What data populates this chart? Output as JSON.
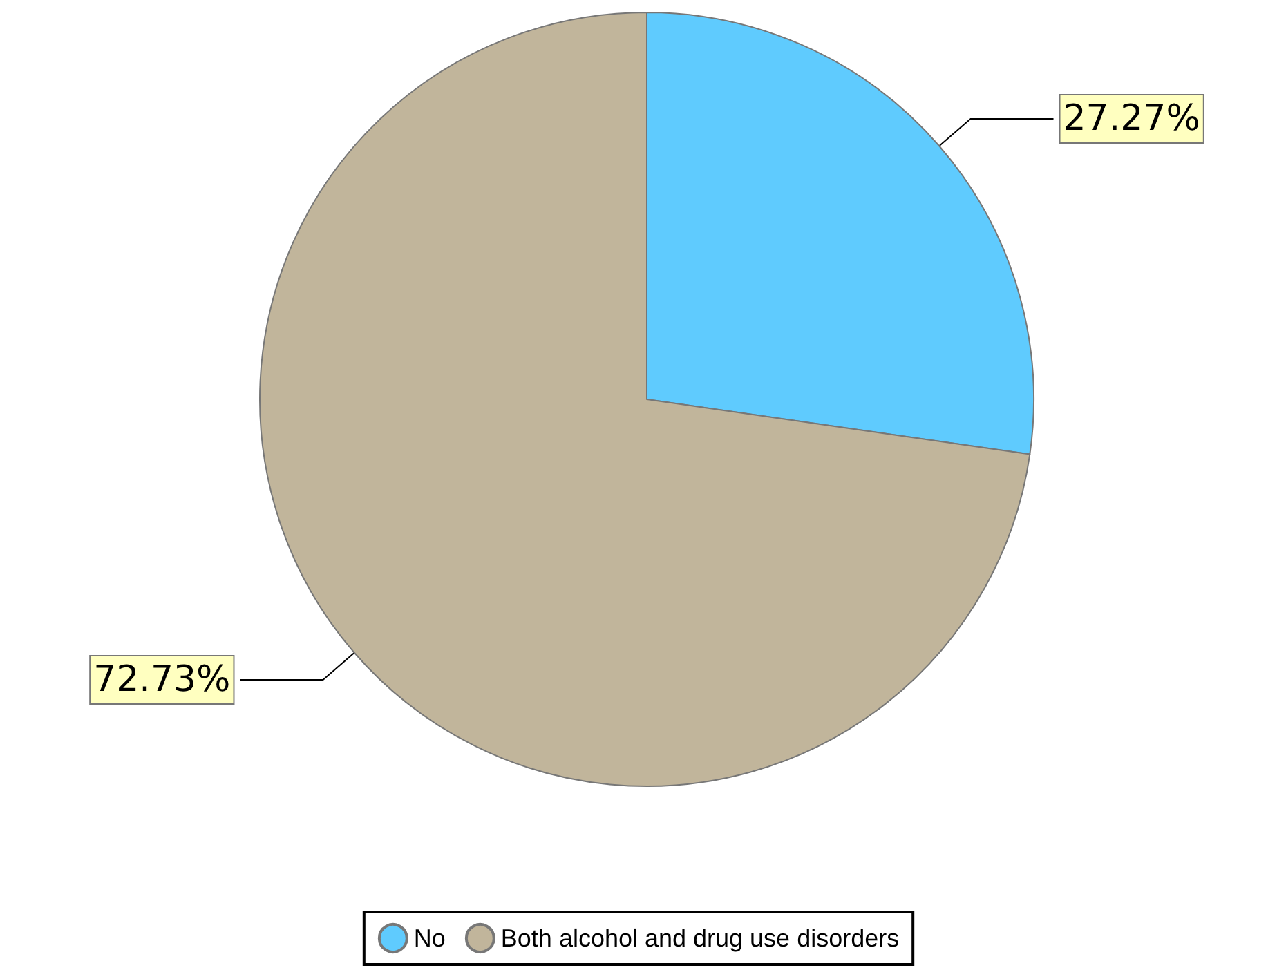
{
  "chart_data": {
    "type": "pie",
    "categories": [
      "No",
      "Both alcohol and drug use disorders"
    ],
    "values": [
      27.27,
      72.73
    ],
    "colors": [
      "#5fcbfe",
      "#c1b59b"
    ],
    "value_labels": [
      "27.27%",
      "72.73%"
    ],
    "legend": "bottom"
  }
}
